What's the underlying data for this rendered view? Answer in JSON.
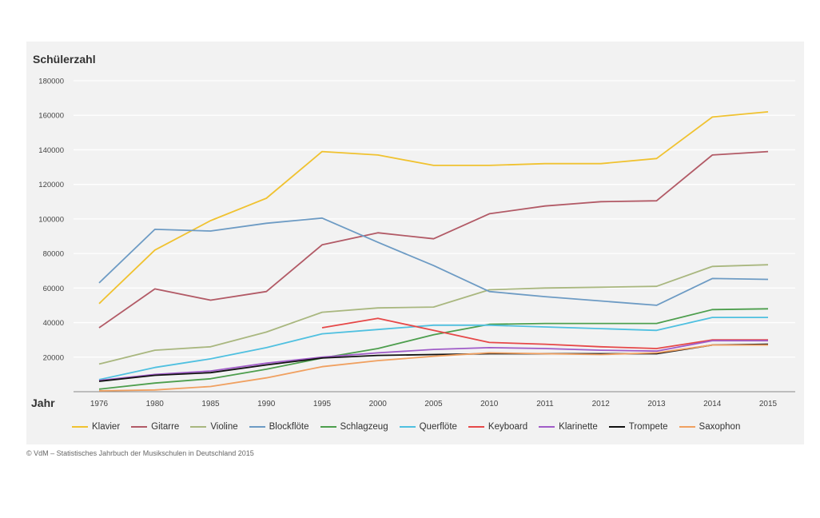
{
  "chart_data": {
    "type": "line",
    "ylabel": "Schülerzahl",
    "xlabel": "Jahr",
    "ylim": [
      0,
      180000
    ],
    "yticks": [
      "180000",
      "160000",
      "140000",
      "120000",
      "100000",
      "80000",
      "60000",
      "40000",
      "20000"
    ],
    "yticks_values": [
      180000,
      160000,
      140000,
      120000,
      100000,
      80000,
      60000,
      40000,
      20000
    ],
    "categories": [
      "1976",
      "1980",
      "1985",
      "1990",
      "1995",
      "2000",
      "2005",
      "2010",
      "2011",
      "2012",
      "2013",
      "2014",
      "2015"
    ],
    "grid": true,
    "legend_position": "bottom",
    "series": [
      {
        "name": "Klavier",
        "color": "#f0c230",
        "values": [
          51000,
          82000,
          99000,
          112000,
          139000,
          137000,
          131000,
          131000,
          132000,
          132000,
          135000,
          159000,
          162000
        ]
      },
      {
        "name": "Gitarre",
        "color": "#b25a66",
        "values": [
          37000,
          59500,
          53000,
          58000,
          85000,
          92000,
          88500,
          103000,
          107500,
          110000,
          110500,
          137000,
          139000
        ]
      },
      {
        "name": "Violine",
        "color": "#a9b77f",
        "values": [
          16000,
          24000,
          26000,
          34500,
          46000,
          48500,
          49000,
          59000,
          60000,
          60500,
          61000,
          72500,
          73500
        ]
      },
      {
        "name": "Blockflöte",
        "color": "#6d9bc4",
        "values": [
          63000,
          94000,
          93000,
          97500,
          100500,
          86500,
          73000,
          58000,
          55000,
          52500,
          50000,
          65500,
          65000
        ]
      },
      {
        "name": "Schlagzeug",
        "color": "#4d9e4d",
        "values": [
          1500,
          5000,
          7500,
          13000,
          19500,
          25000,
          33000,
          39000,
          39500,
          39500,
          39500,
          47500,
          48000
        ]
      },
      {
        "name": "Querflöte",
        "color": "#4fc0e0",
        "values": [
          7000,
          14000,
          19000,
          25500,
          33500,
          36000,
          38500,
          38500,
          37500,
          36500,
          35500,
          43000,
          43000
        ]
      },
      {
        "name": "Keyboard",
        "color": "#e64848",
        "values": [
          null,
          null,
          null,
          null,
          37000,
          42500,
          35500,
          28500,
          27500,
          26000,
          25000,
          30000,
          30000
        ]
      },
      {
        "name": "Klarinette",
        "color": "#a05cc8",
        "values": [
          6500,
          10000,
          12000,
          16500,
          20000,
          22500,
          24500,
          25500,
          25000,
          24000,
          23500,
          29500,
          29500
        ]
      },
      {
        "name": "Trompete",
        "color": "#111111",
        "values": [
          6000,
          9500,
          11000,
          15500,
          19500,
          21000,
          21500,
          22000,
          22000,
          22000,
          22000,
          27000,
          27500
        ]
      },
      {
        "name": "Saxophon",
        "color": "#f0a060",
        "values": [
          500,
          1000,
          3000,
          8000,
          14500,
          18000,
          20500,
          22500,
          22000,
          21500,
          22500,
          27000,
          27000
        ]
      }
    ]
  },
  "source_note": "© VdM – Statistisches Jahrbuch der Musikschulen in Deutschland 2015"
}
